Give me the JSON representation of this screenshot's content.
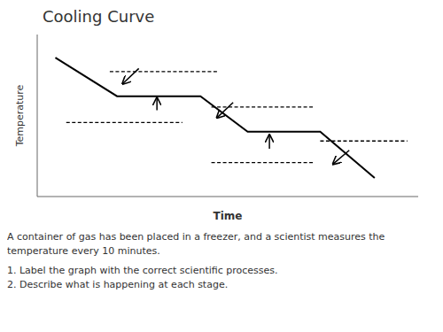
{
  "chart_data": {
    "type": "line",
    "title": "Cooling Curve",
    "x_label": "Time",
    "y_label": "Temperature",
    "x": [
      0.5,
      2.2,
      2.2,
      4.5,
      5.8,
      5.8,
      7.8,
      9.3
    ],
    "values": [
      9.0,
      6.5,
      6.5,
      6.5,
      4.2,
      4.2,
      4.2,
      1.2
    ],
    "color": "black",
    "xlim": [
      0,
      10.5
    ],
    "ylim": [
      0,
      10.5
    ],
    "xticks": [],
    "yticks": [],
    "tick_labels": false,
    "grid": false,
    "dashes": [
      {
        "x1": 2.0,
        "x2": 5.0,
        "y": 8.1
      },
      {
        "x1": 0.8,
        "x2": 4.0,
        "y": 4.8
      },
      {
        "x1": 4.8,
        "x2": 7.6,
        "y": 5.8
      },
      {
        "x1": 4.8,
        "x2": 7.6,
        "y": 2.2
      },
      {
        "x1": 7.8,
        "x2": 10.2,
        "y": 3.6
      }
    ],
    "arrows": [
      {
        "x_tail": 2.8,
        "y_tail": 8.3,
        "x_head": 2.35,
        "y_head": 7.3
      },
      {
        "x_tail": 5.4,
        "y_tail": 6.1,
        "x_head": 4.95,
        "y_head": 5.1
      },
      {
        "x_tail": 8.6,
        "y_tail": 3.0,
        "x_head": 8.15,
        "y_head": 2.1
      },
      {
        "x_tail": 3.3,
        "y_tail": 5.6,
        "x_head": 3.3,
        "y_head": 6.4
      },
      {
        "x_tail": 6.4,
        "y_tail": 3.1,
        "x_head": 6.4,
        "y_head": 4.0
      }
    ],
    "annotations": [
      "A container of gas has been placed in a freezer, and a scientist measures the",
      "temperature every 10 minutes.",
      "1.  Label the graph with the correct scientific processes.",
      "2.  Describe what is happening at each stage."
    ]
  }
}
